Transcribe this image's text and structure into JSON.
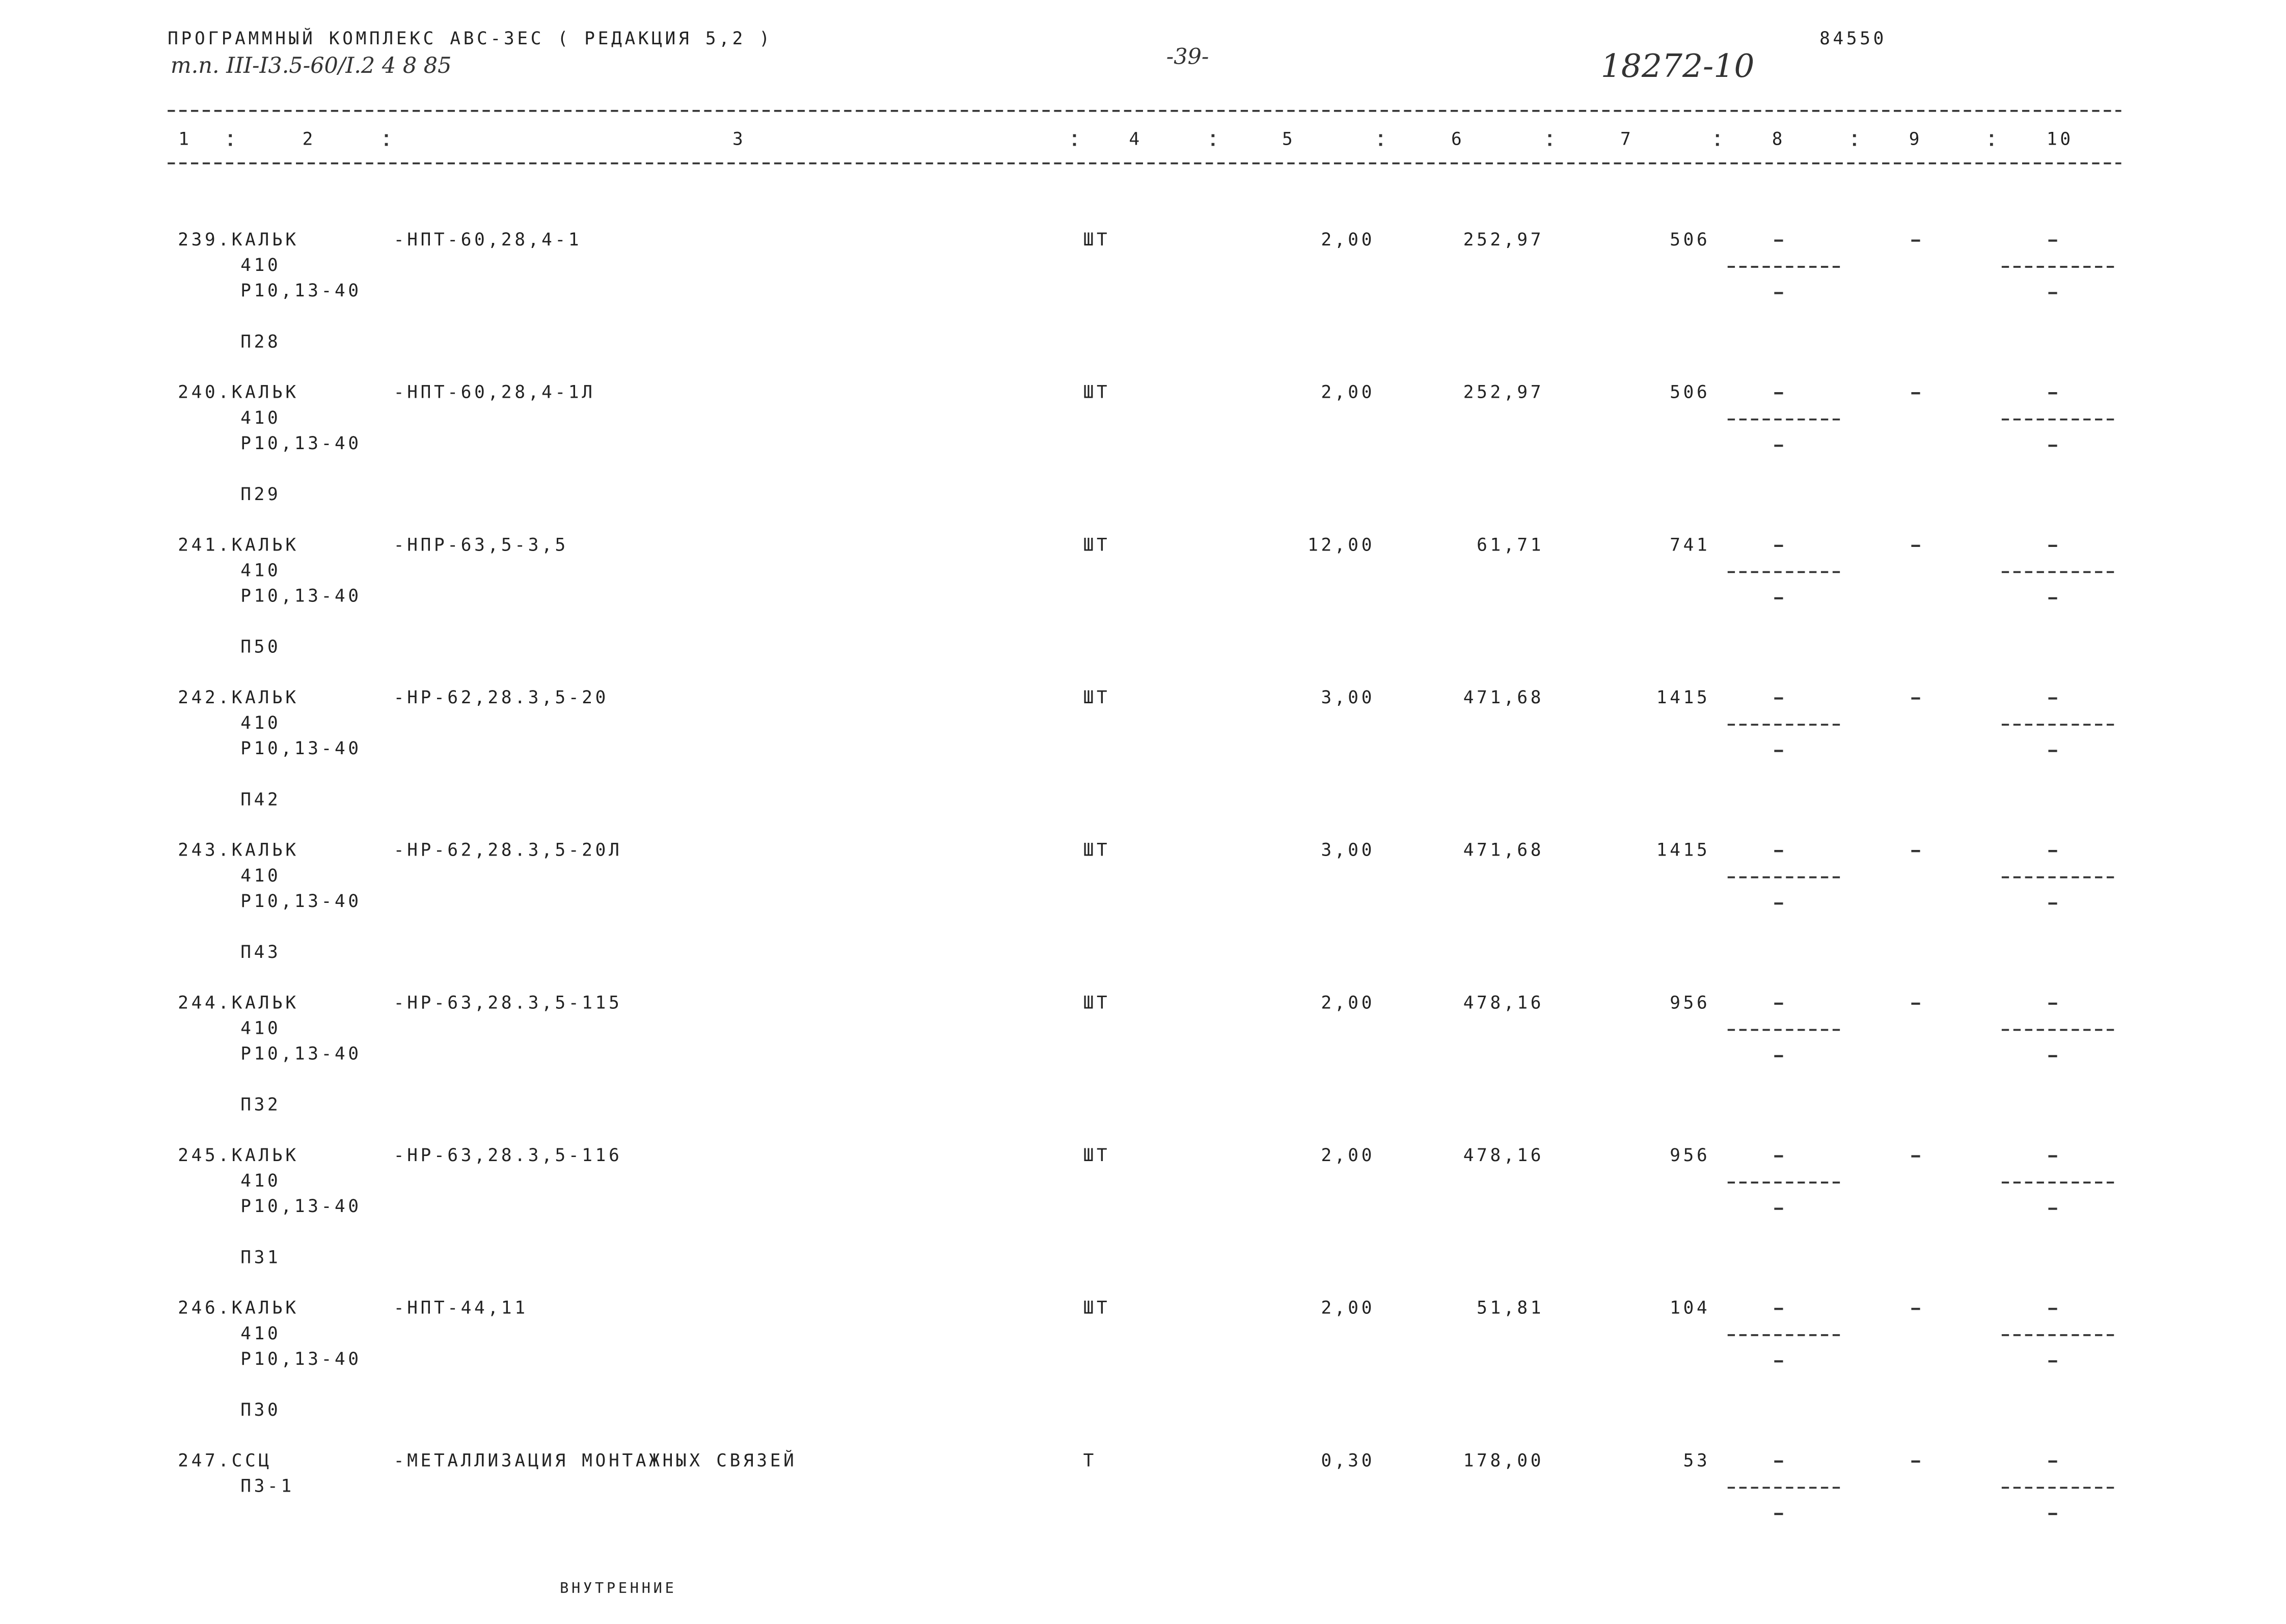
{
  "header": {
    "program": "ПРОГРАММНЫЙ КОМПЛЕКС АВС-3ЕС  ( РЕДАКЦИЯ  5,2 )",
    "project": "т.п. III-I3.5-60/I.2 4 8 85",
    "page": "-39-",
    "doc_number": "18272-10",
    "code": "84550"
  },
  "columns": [
    "1",
    "2",
    "3",
    "4",
    "5",
    "6",
    "7",
    "8",
    "9",
    "10"
  ],
  "rows": [
    {
      "id": "239.КАЛЬК",
      "sub": [
        "410",
        "Р10,13-40"
      ],
      "ref": "П28",
      "name": "-НПТ-60,28,4-1",
      "unit": "ШТ",
      "qty": "2,00",
      "price": "252,97",
      "total": "506"
    },
    {
      "id": "240.КАЛЬК",
      "sub": [
        "410",
        "Р10,13-40"
      ],
      "ref": "П29",
      "name": "-НПТ-60,28,4-1Л",
      "unit": "ШТ",
      "qty": "2,00",
      "price": "252,97",
      "total": "506"
    },
    {
      "id": "241.КАЛЬК",
      "sub": [
        "410",
        "Р10,13-40"
      ],
      "ref": "П50",
      "name": "-НПР-63,5-3,5",
      "unit": "ШТ",
      "qty": "12,00",
      "price": "61,71",
      "total": "741"
    },
    {
      "id": "242.КАЛЬК",
      "sub": [
        "410",
        "Р10,13-40"
      ],
      "ref": "П42",
      "name": "-НР-62,28.3,5-20",
      "unit": "ШТ",
      "qty": "3,00",
      "price": "471,68",
      "total": "1415"
    },
    {
      "id": "243.КАЛЬК",
      "sub": [
        "410",
        "Р10,13-40"
      ],
      "ref": "П43",
      "name": "-НР-62,28.3,5-20Л",
      "unit": "ШТ",
      "qty": "3,00",
      "price": "471,68",
      "total": "1415"
    },
    {
      "id": "244.КАЛЬК",
      "sub": [
        "410",
        "Р10,13-40"
      ],
      "ref": "П32",
      "name": "-НР-63,28.3,5-115",
      "unit": "ШТ",
      "qty": "2,00",
      "price": "478,16",
      "total": "956"
    },
    {
      "id": "245.КАЛЬК",
      "sub": [
        "410",
        "Р10,13-40"
      ],
      "ref": "П31",
      "name": "-НР-63,28.3,5-116",
      "unit": "ШТ",
      "qty": "2,00",
      "price": "478,16",
      "total": "956"
    },
    {
      "id": "246.КАЛЬК",
      "sub": [
        "410",
        "Р10,13-40"
      ],
      "ref": "П30",
      "name": "-НПТ-44,11",
      "unit": "ШТ",
      "qty": "2,00",
      "price": "51,81",
      "total": "104"
    },
    {
      "id": "247.ССЦ",
      "sub": [
        "П3-1"
      ],
      "name": "-МЕТАЛЛИЗАЦИЯ МОНТАЖНЫХ СВЯЗЕЙ",
      "unit": "Т",
      "qty": "0,30",
      "price": "178,00",
      "total": "53"
    }
  ],
  "footer": "ВНУТРЕННИЕ"
}
